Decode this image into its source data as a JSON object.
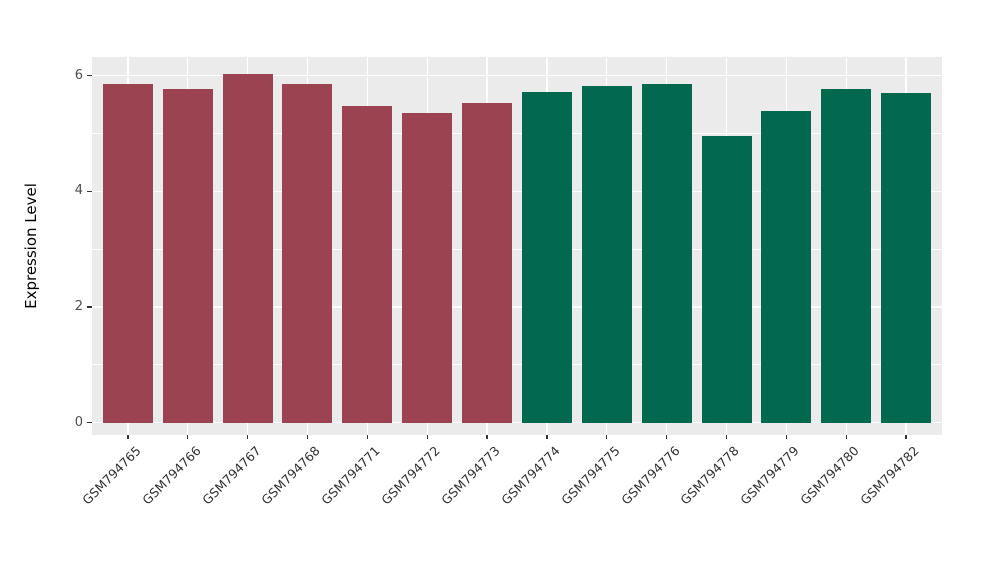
{
  "chart_data": {
    "type": "bar",
    "title": "",
    "ylabel": "Expression Level",
    "xlabel": "",
    "categories": [
      "GSM794765",
      "GSM794766",
      "GSM794767",
      "GSM794768",
      "GSM794771",
      "GSM794772",
      "GSM794773",
      "GSM794774",
      "GSM794775",
      "GSM794776",
      "GSM794778",
      "GSM794779",
      "GSM794780",
      "GSM794782"
    ],
    "values": [
      5.85,
      5.76,
      6.03,
      5.85,
      5.48,
      5.35,
      5.52,
      5.71,
      5.82,
      5.86,
      4.96,
      5.39,
      5.76,
      5.7
    ],
    "bar_colors": [
      "#9C4352",
      "#9C4352",
      "#9C4352",
      "#9C4352",
      "#9C4352",
      "#9C4352",
      "#9C4352",
      "#02694E",
      "#02694E",
      "#02694E",
      "#02694E",
      "#02694E",
      "#02694E",
      "#02694E"
    ],
    "groups": [
      {
        "color": "#9C4352",
        "samples": [
          "GSM794765",
          "GSM794766",
          "GSM794767",
          "GSM794768",
          "GSM794771",
          "GSM794772",
          "GSM794773"
        ]
      },
      {
        "color": "#02694E",
        "samples": [
          "GSM794774",
          "GSM794775",
          "GSM794776",
          "GSM794778",
          "GSM794779",
          "GSM794780",
          "GSM794782"
        ]
      }
    ],
    "ytick_labels": [
      "0",
      "2",
      "4",
      "6"
    ],
    "yticks": [
      0,
      2,
      4,
      6
    ],
    "minor_yticks": [
      1,
      3,
      5
    ],
    "ylim": [
      -0.213,
      6.32
    ],
    "grid": "on",
    "legend": "none",
    "panel_bg": "#EBEBEB",
    "grid_color": "#FFFFFF"
  }
}
